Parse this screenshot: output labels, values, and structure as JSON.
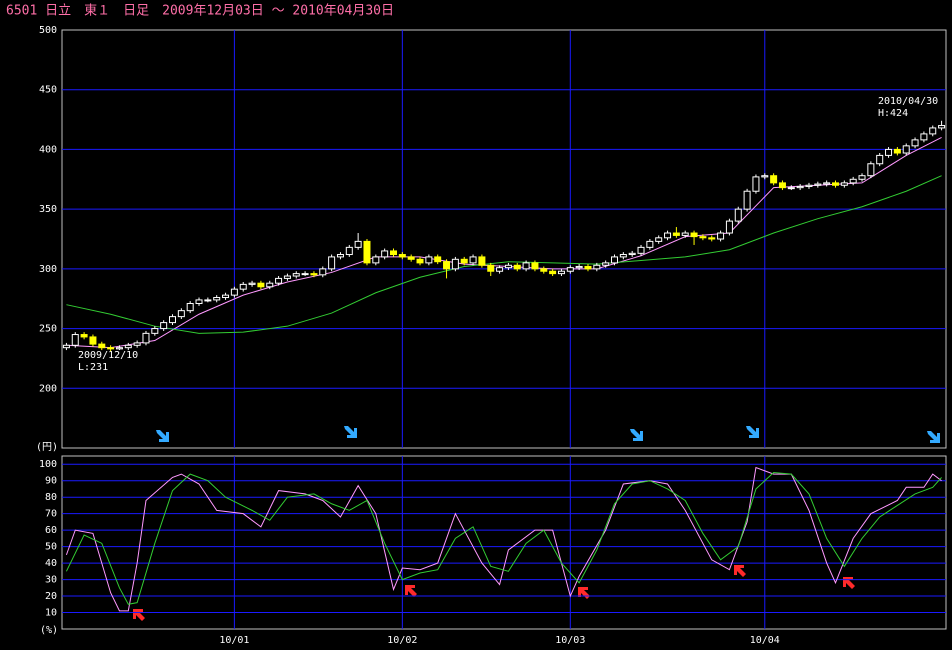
{
  "chart_data": [
    {
      "type": "candlestick",
      "title": "6501 日立　東１　日足　2009年12月03日 ～ 2010年04月30日",
      "y_unit_label": "(円)",
      "annotations": [
        "2009/12/10",
        "L:231",
        "2010/04/30",
        "H:424"
      ],
      "xlim": [
        -0.5,
        99.5
      ],
      "xticks": [
        {
          "value": 19,
          "label": "10/01"
        },
        {
          "value": 38,
          "label": "10/02"
        },
        {
          "value": 57,
          "label": "10/03"
        },
        {
          "value": 79,
          "label": "10/04"
        }
      ],
      "ylim": [
        150,
        500
      ],
      "yticks": [
        200,
        250,
        300,
        350,
        400,
        450,
        500
      ],
      "grid": true,
      "up_color": "#ffffff",
      "down_color": "#ffff00",
      "open": [
        234,
        236,
        245,
        243,
        237,
        234,
        233,
        234,
        236,
        238,
        246,
        250,
        255,
        260,
        265,
        271,
        274,
        274,
        276,
        278,
        283,
        287,
        288,
        285,
        288,
        292,
        294,
        296,
        296,
        295,
        300,
        310,
        312,
        318,
        323,
        305,
        310,
        315,
        312,
        310,
        308,
        305,
        310,
        306,
        300,
        308,
        305,
        310,
        303,
        298,
        301,
        303,
        300,
        305,
        300,
        298,
        296,
        298,
        301,
        302,
        300,
        303,
        305,
        310,
        312,
        313,
        318,
        323,
        326,
        330,
        328,
        330,
        327,
        326,
        325,
        330,
        340,
        350,
        365,
        377,
        378,
        372,
        368,
        368,
        369,
        370,
        371,
        372,
        370,
        372,
        375,
        378,
        388,
        395,
        400,
        397,
        403,
        408,
        413,
        418
      ],
      "high": [
        238,
        247,
        247,
        245,
        239,
        236,
        236,
        238,
        240,
        248,
        252,
        257,
        262,
        267,
        273,
        276,
        276,
        278,
        280,
        285,
        289,
        290,
        290,
        290,
        294,
        296,
        298,
        298,
        298,
        302,
        312,
        314,
        320,
        330,
        325,
        312,
        317,
        317,
        314,
        312,
        310,
        312,
        312,
        308,
        310,
        310,
        312,
        312,
        305,
        303,
        305,
        305,
        307,
        307,
        302,
        300,
        300,
        303,
        304,
        304,
        305,
        307,
        312,
        314,
        315,
        320,
        325,
        328,
        332,
        335,
        332,
        332,
        329,
        328,
        332,
        342,
        352,
        367,
        379,
        380,
        380,
        374,
        370,
        371,
        372,
        373,
        374,
        374,
        374,
        377,
        380,
        390,
        397,
        402,
        402,
        405,
        410,
        415,
        420,
        424
      ],
      "low": [
        232,
        234,
        241,
        235,
        232,
        231,
        232,
        232,
        234,
        236,
        244,
        248,
        253,
        258,
        263,
        269,
        272,
        272,
        274,
        276,
        281,
        285,
        283,
        283,
        286,
        290,
        292,
        294,
        293,
        293,
        298,
        308,
        310,
        316,
        303,
        303,
        308,
        310,
        308,
        306,
        303,
        303,
        304,
        292,
        298,
        303,
        303,
        301,
        294,
        296,
        299,
        298,
        298,
        298,
        296,
        294,
        294,
        296,
        299,
        298,
        298,
        301,
        303,
        308,
        310,
        311,
        316,
        321,
        324,
        326,
        326,
        320,
        324,
        323,
        323,
        328,
        338,
        348,
        363,
        375,
        370,
        366,
        366,
        366,
        367,
        368,
        369,
        368,
        368,
        370,
        373,
        376,
        386,
        393,
        395,
        395,
        401,
        406,
        411,
        416
      ],
      "close": [
        236,
        245,
        243,
        237,
        234,
        233,
        234,
        236,
        238,
        246,
        250,
        255,
        260,
        265,
        271,
        274,
        274,
        276,
        278,
        283,
        287,
        288,
        285,
        288,
        292,
        294,
        296,
        296,
        295,
        300,
        310,
        312,
        318,
        323,
        305,
        310,
        315,
        312,
        310,
        308,
        305,
        310,
        306,
        300,
        308,
        305,
        310,
        303,
        298,
        301,
        303,
        300,
        305,
        300,
        298,
        296,
        298,
        301,
        302,
        300,
        303,
        305,
        310,
        312,
        313,
        318,
        323,
        326,
        330,
        328,
        330,
        327,
        326,
        325,
        330,
        340,
        350,
        365,
        377,
        378,
        372,
        368,
        368,
        369,
        370,
        371,
        372,
        370,
        372,
        375,
        378,
        388,
        395,
        400,
        397,
        403,
        408,
        413,
        418,
        420
      ],
      "lines": [
        {
          "color": "#ff99ff",
          "x": [
            0,
            5,
            10,
            15,
            20,
            25,
            30,
            35,
            40,
            45,
            50,
            55,
            60,
            65,
            70,
            75,
            80,
            85,
            90,
            95,
            99
          ],
          "values": [
            236,
            234,
            240,
            262,
            278,
            289,
            297,
            310,
            310,
            304,
            302,
            300,
            300,
            311,
            327,
            330,
            368,
            370,
            372,
            395,
            410
          ]
        },
        {
          "color": "#33cc33",
          "x": [
            0,
            5,
            10,
            15,
            20,
            25,
            30,
            35,
            40,
            45,
            50,
            55,
            60,
            65,
            70,
            75,
            80,
            85,
            90,
            95,
            99
          ],
          "values": [
            270,
            262,
            252,
            246,
            247,
            252,
            263,
            280,
            293,
            302,
            306,
            305,
            304,
            307,
            310,
            316,
            330,
            342,
            352,
            365,
            378
          ]
        }
      ]
    },
    {
      "type": "line",
      "y_unit_label": "(%)",
      "xlim": [
        -0.5,
        99.5
      ],
      "ylim": [
        0,
        105
      ],
      "yticks": [
        10,
        20,
        30,
        40,
        50,
        60,
        70,
        80,
        90,
        100
      ],
      "grid": true,
      "series": [
        {
          "color": "#ff99ff",
          "x": [
            0,
            1,
            3,
            4,
            5,
            6,
            7,
            8,
            9,
            12,
            13,
            15,
            17,
            20,
            22,
            24,
            27,
            29,
            31,
            33,
            35,
            37,
            38,
            40,
            42,
            44,
            47,
            49,
            50,
            53,
            55,
            57,
            58,
            61,
            63,
            66,
            68,
            70,
            73,
            75,
            77,
            78,
            80,
            82,
            84,
            86,
            87,
            89,
            91,
            94,
            95,
            97,
            98,
            99
          ],
          "values": [
            45,
            60,
            58,
            40,
            22,
            11,
            11,
            40,
            78,
            92,
            94,
            88,
            72,
            70,
            62,
            84,
            82,
            78,
            68,
            87,
            70,
            24,
            37,
            36,
            40,
            70,
            40,
            27,
            48,
            60,
            60,
            20,
            32,
            60,
            88,
            90,
            88,
            72,
            42,
            36,
            65,
            98,
            94,
            94,
            72,
            40,
            28,
            55,
            70,
            78,
            86,
            86,
            94,
            90
          ]
        },
        {
          "color": "#33cc33",
          "x": [
            0,
            2,
            4,
            6,
            7,
            8,
            10,
            12,
            14,
            16,
            18,
            21,
            23,
            25,
            28,
            30,
            32,
            34,
            36,
            38,
            40,
            42,
            44,
            46,
            48,
            50,
            52,
            54,
            56,
            58,
            60,
            62,
            64,
            66,
            68,
            70,
            72,
            74,
            76,
            78,
            80,
            82,
            84,
            86,
            88,
            90,
            92,
            94,
            96,
            98,
            99
          ],
          "values": [
            35,
            57,
            52,
            25,
            15,
            16,
            52,
            84,
            94,
            90,
            80,
            72,
            66,
            80,
            82,
            76,
            72,
            78,
            52,
            30,
            34,
            36,
            55,
            62,
            38,
            35,
            52,
            60,
            40,
            28,
            48,
            76,
            88,
            90,
            85,
            78,
            58,
            42,
            50,
            85,
            95,
            94,
            82,
            55,
            38,
            55,
            68,
            75,
            82,
            86,
            92
          ]
        }
      ]
    }
  ]
}
